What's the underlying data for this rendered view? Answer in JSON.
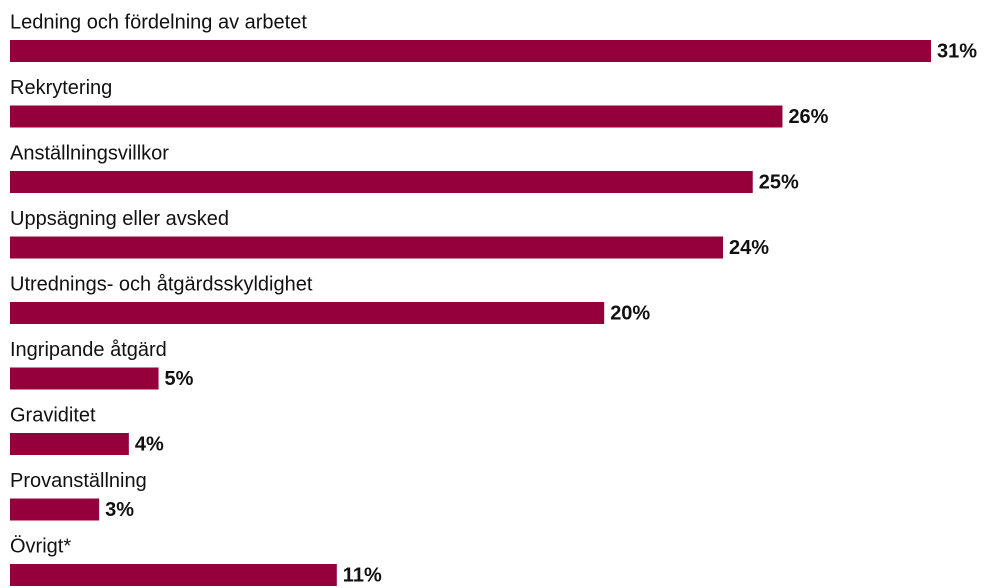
{
  "chart_data": {
    "type": "bar",
    "orientation": "horizontal",
    "categories": [
      "Ledning och fördelning av arbetet",
      "Rekrytering",
      "Anställningsvillkor",
      "Uppsägning eller avsked",
      "Utrednings- och åtgärdsskyldighet",
      "Ingripande åtgärd",
      "Graviditet",
      "Provanställning",
      "Övrigt*"
    ],
    "values": [
      31,
      26,
      25,
      24,
      20,
      5,
      4,
      3,
      11
    ],
    "value_labels": [
      "31%",
      "26%",
      "25%",
      "24%",
      "20%",
      "5%",
      "4%",
      "3%",
      "11%"
    ],
    "color": "#96003a",
    "xlim": [
      0,
      31
    ]
  }
}
